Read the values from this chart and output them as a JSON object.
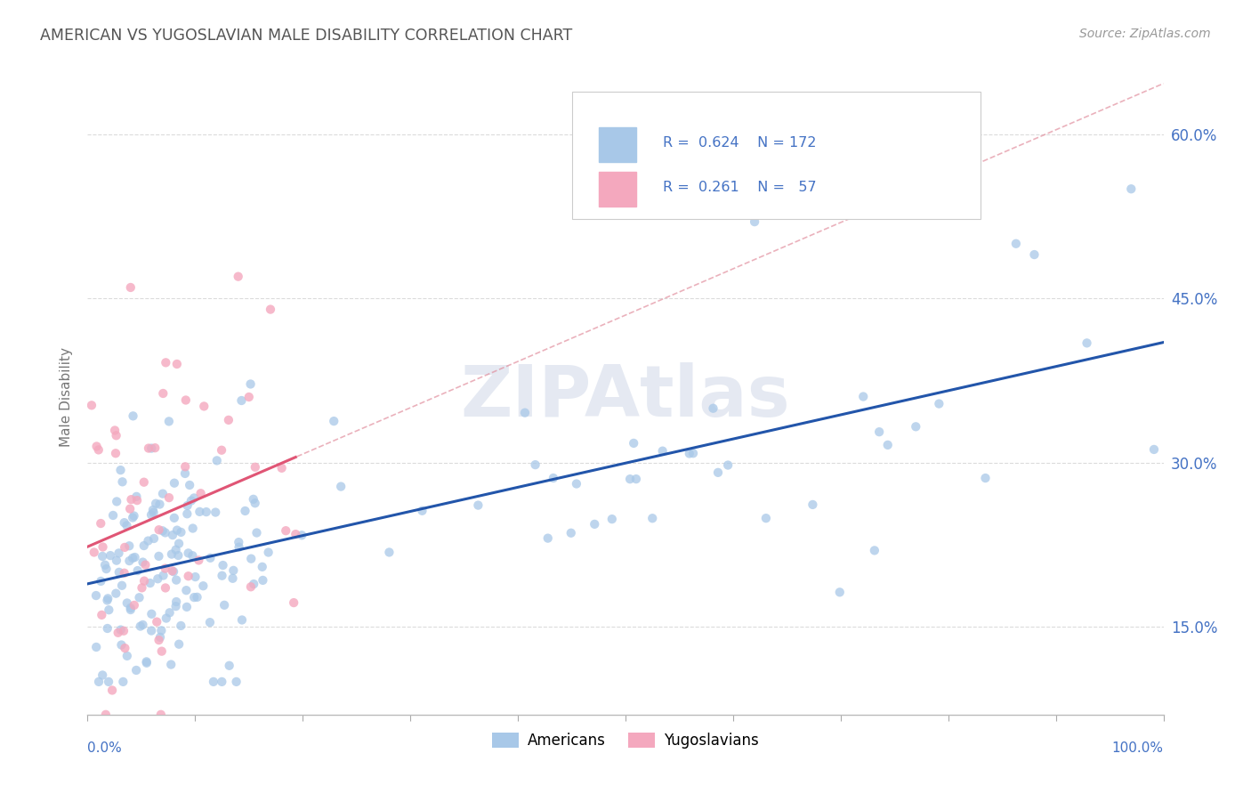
{
  "title": "AMERICAN VS YUGOSLAVIAN MALE DISABILITY CORRELATION CHART",
  "source": "Source: ZipAtlas.com",
  "ylabel": "Male Disability",
  "xlim": [
    0.0,
    1.0
  ],
  "ylim": [
    0.07,
    0.65
  ],
  "yticks": [
    0.15,
    0.3,
    0.45,
    0.6
  ],
  "ytick_labels": [
    "15.0%",
    "30.0%",
    "45.0%",
    "60.0%"
  ],
  "american_color": "#a8c8e8",
  "yugoslav_color": "#f4a8be",
  "american_line_color": "#2255aa",
  "yugoslav_line_color": "#e05575",
  "yugoslav_dash_color": "#e08898",
  "watermark_color": "#d0d8e8",
  "background_color": "#ffffff",
  "grid_color": "#cccccc",
  "title_color": "#555555",
  "axis_label_color": "#4472c4",
  "legend_r1": "R = 0.624",
  "legend_n1": "N = 172",
  "legend_r2": "R = 0.261",
  "legend_n2": "N =  57"
}
